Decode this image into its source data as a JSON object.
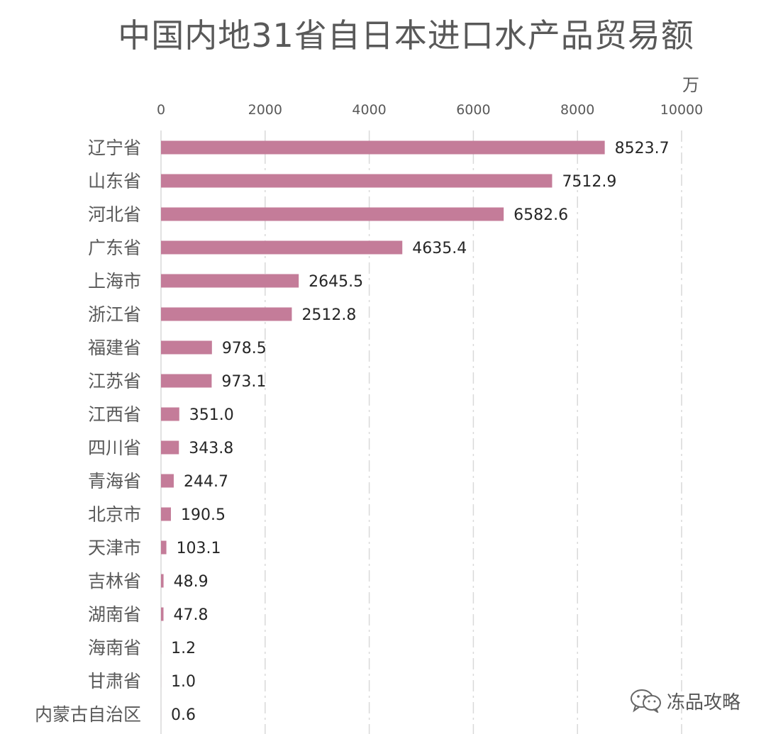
{
  "page": {
    "title": "中国内地31省自日本进口水产品贸易额",
    "unit_label": "万",
    "watermark_text": "冻品攻略"
  },
  "colors": {
    "bar": "#c47c99",
    "axis_text": "#595959",
    "category_text": "#595959",
    "value_text": "#262626",
    "gridline": "#d9d9d9"
  },
  "chart_data": {
    "type": "bar",
    "orientation": "horizontal",
    "title": "中国内地31省自日本进口水产品贸易额",
    "xlabel": "万",
    "ylabel": "",
    "xlim": [
      0,
      10000
    ],
    "xticks": [
      0,
      2000,
      4000,
      6000,
      8000,
      10000
    ],
    "grid": true,
    "categories": [
      "辽宁省",
      "山东省",
      "河北省",
      "广东省",
      "上海市",
      "浙江省",
      "福建省",
      "江苏省",
      "江西省",
      "四川省",
      "青海省",
      "北京市",
      "天津市",
      "吉林省",
      "湖南省",
      "海南省",
      "甘肃省",
      "内蒙古自治区"
    ],
    "values": [
      8523.7,
      7512.9,
      6582.6,
      4635.4,
      2645.5,
      2512.8,
      978.5,
      973.1,
      351.0,
      343.8,
      244.7,
      190.5,
      103.1,
      48.9,
      47.8,
      1.2,
      1.0,
      0.6
    ],
    "data_labels": [
      "8523.7",
      "7512.9",
      "6582.6",
      "4635.4",
      "2645.5",
      "2512.8",
      "978.5",
      "973.1",
      "351.0",
      "343.8",
      "244.7",
      "190.5",
      "103.1",
      "48.9",
      "47.8",
      "1.2",
      "1.0",
      "0.6"
    ]
  }
}
